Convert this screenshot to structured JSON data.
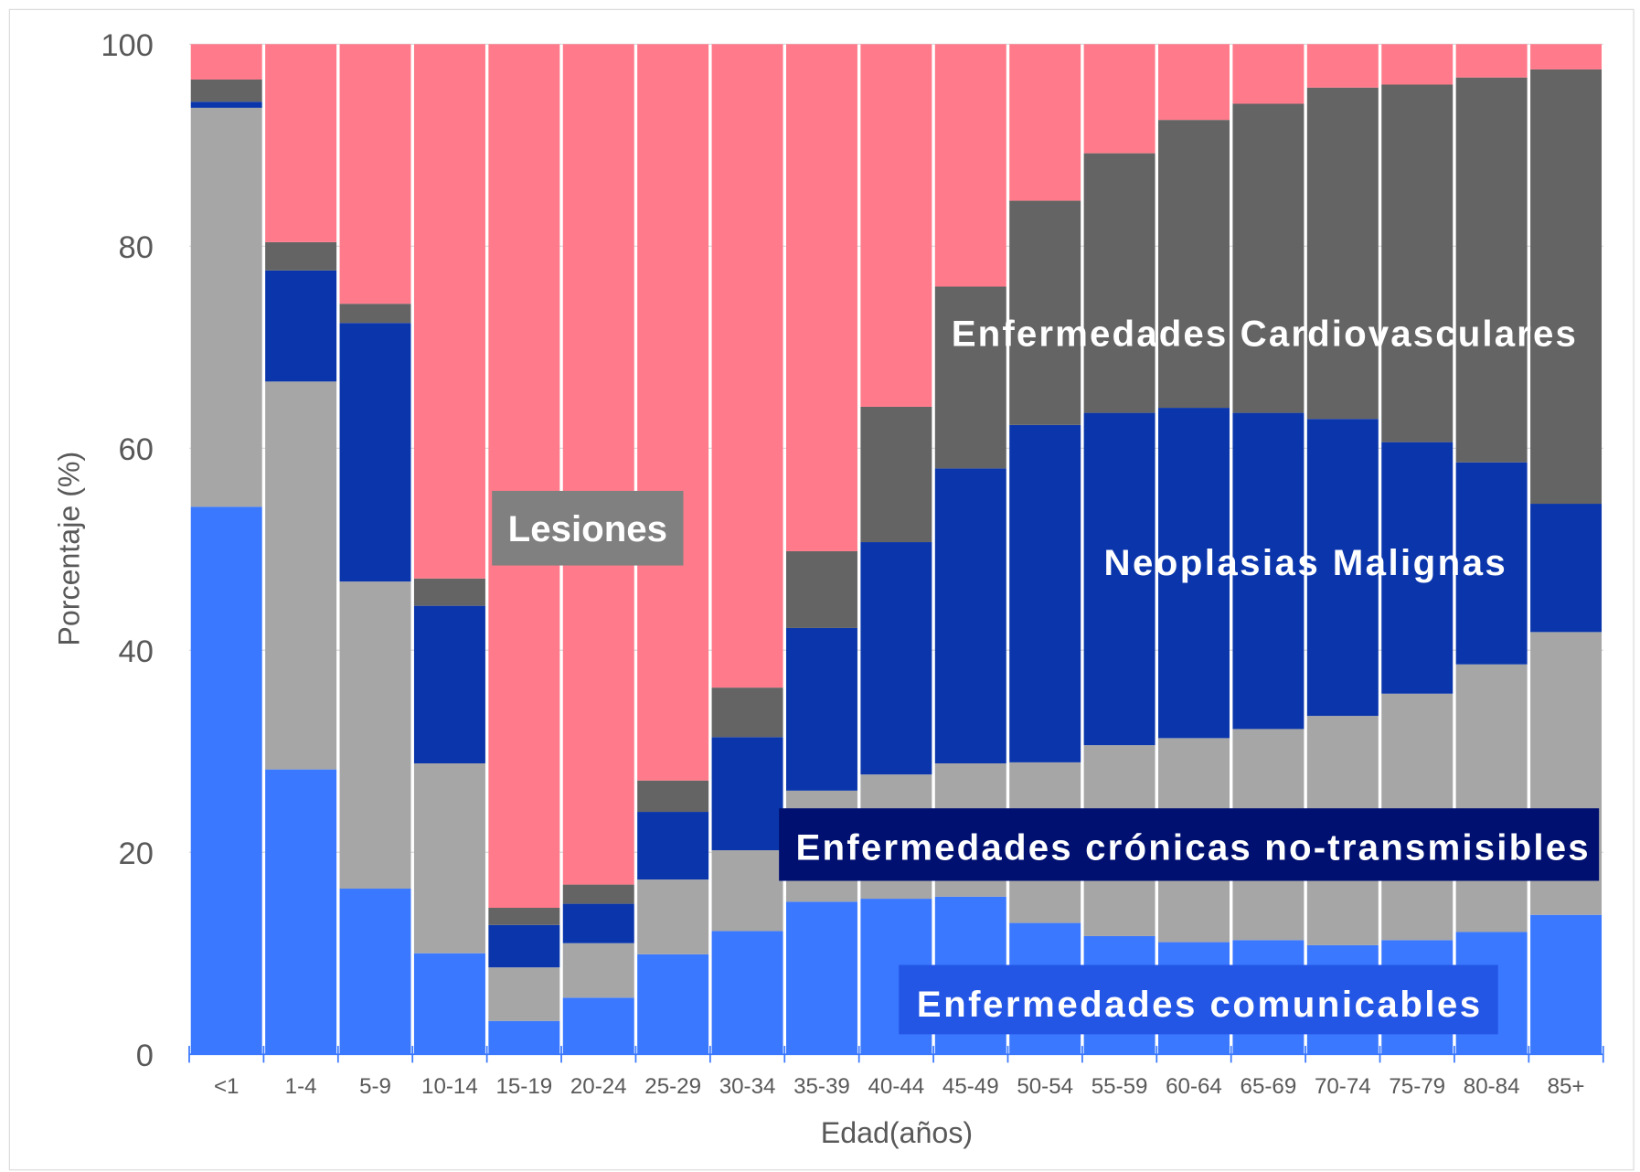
{
  "chart_data": {
    "type": "bar",
    "stacked": true,
    "percent_stacked": true,
    "title": "",
    "xlabel": "Edad(años)",
    "ylabel": "Porcentaje (%)",
    "ylim": [
      0,
      100
    ],
    "yticks": [
      0,
      20,
      40,
      60,
      80,
      100
    ],
    "grid": true,
    "legend": "none (series labelled inside chart)",
    "categories": [
      "<1",
      "1-4",
      "5-9",
      "10-14",
      "15-19",
      "20-24",
      "25-29",
      "30-34",
      "35-39",
      "40-44",
      "45-49",
      "50-54",
      "55-59",
      "60-64",
      "65-69",
      "70-74",
      "75-79",
      "80-84",
      "85+"
    ],
    "series": [
      {
        "name": "Enfermedades comunicables",
        "color": "#3a78ff",
        "values": [
          54.2,
          28.2,
          16.4,
          10.0,
          3.3,
          5.6,
          9.9,
          12.2,
          15.1,
          15.4,
          15.6,
          13.0,
          11.7,
          11.1,
          11.3,
          10.8,
          11.3,
          12.1,
          13.8
        ]
      },
      {
        "name": "Enfermedades crónicas no-transmisibles",
        "color": "#a6a6a6",
        "values": [
          39.5,
          38.4,
          30.4,
          18.8,
          5.3,
          5.4,
          7.4,
          8.0,
          11.0,
          12.3,
          13.2,
          15.9,
          18.9,
          20.2,
          20.9,
          22.7,
          24.4,
          26.5,
          28.0
        ]
      },
      {
        "name": "Neoplasias Malignas",
        "color": "#0b36ab",
        "values": [
          0.6,
          11.0,
          25.6,
          15.6,
          4.2,
          3.9,
          6.7,
          11.2,
          16.1,
          23.0,
          29.2,
          33.4,
          32.9,
          32.7,
          31.3,
          29.4,
          24.9,
          20.0,
          12.7
        ]
      },
      {
        "name": "Enfermedades Cardiovasculares",
        "color": "#646464",
        "values": [
          2.2,
          2.8,
          1.9,
          2.7,
          1.7,
          1.9,
          3.1,
          4.9,
          7.6,
          13.4,
          18.0,
          22.2,
          25.7,
          28.5,
          30.6,
          32.8,
          35.4,
          38.1,
          43.0
        ]
      },
      {
        "name": "Lesiones",
        "color": "#ff7a8a",
        "values": [
          3.5,
          19.6,
          25.7,
          52.9,
          85.5,
          83.2,
          72.9,
          63.7,
          50.2,
          35.9,
          24.0,
          15.5,
          10.8,
          7.5,
          5.9,
          4.3,
          4.0,
          3.3,
          2.5
        ]
      }
    ],
    "annotations": {
      "lesiones": {
        "text": "Lesiones",
        "box_color": "#808080"
      },
      "cardiovasculares": {
        "text": "Enfermedades Cardiovasculares"
      },
      "neoplasias": {
        "text": "Neoplasias Malignas"
      },
      "cronicas": {
        "text": "Enfermedades crónicas no-transmisibles",
        "box_color": "#001070"
      },
      "comunicables": {
        "text": "Enfermedades comunicables",
        "box_color": "#2456e6"
      }
    }
  }
}
